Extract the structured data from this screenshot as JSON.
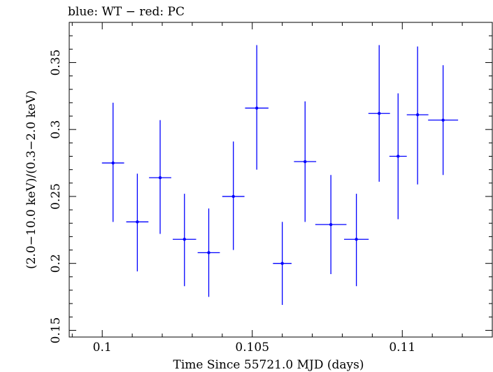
{
  "chart_data": {
    "type": "scatter",
    "title": "blue: WT − red: PC",
    "xlabel": "Time Since 55721.0 MJD (days)",
    "ylabel": "(2.0−10.0 keV)/(0.3−2.0 keV)",
    "xlim": [
      0.0989,
      0.113
    ],
    "ylim": [
      0.145,
      0.38
    ],
    "x_ticks": [
      {
        "value": 0.1,
        "label": "0.1"
      },
      {
        "value": 0.105,
        "label": "0.105"
      },
      {
        "value": 0.11,
        "label": "0.11"
      }
    ],
    "y_ticks": [
      {
        "value": 0.15,
        "label": "0.15"
      },
      {
        "value": 0.2,
        "label": "0.2"
      },
      {
        "value": 0.25,
        "label": "0.25"
      },
      {
        "value": 0.3,
        "label": "0.3"
      },
      {
        "value": 0.35,
        "label": "0.35"
      }
    ],
    "grid": false,
    "series": [
      {
        "color": "#0000ff",
        "points": [
          {
            "x": 0.10036,
            "xerr": 0.00037,
            "y": 0.275,
            "ylo": 0.231,
            "yhi": 0.32
          },
          {
            "x": 0.10117,
            "xerr": 0.00037,
            "y": 0.231,
            "ylo": 0.194,
            "yhi": 0.267
          },
          {
            "x": 0.10193,
            "xerr": 0.00037,
            "y": 0.264,
            "ylo": 0.222,
            "yhi": 0.307
          },
          {
            "x": 0.10274,
            "xerr": 0.00039,
            "y": 0.218,
            "ylo": 0.183,
            "yhi": 0.252
          },
          {
            "x": 0.10355,
            "xerr": 0.00037,
            "y": 0.208,
            "ylo": 0.175,
            "yhi": 0.241
          },
          {
            "x": 0.10437,
            "xerr": 0.00037,
            "y": 0.25,
            "ylo": 0.21,
            "yhi": 0.291
          },
          {
            "x": 0.10515,
            "xerr": 0.00039,
            "y": 0.316,
            "ylo": 0.27,
            "yhi": 0.363
          },
          {
            "x": 0.106,
            "xerr": 0.00031,
            "y": 0.2,
            "ylo": 0.169,
            "yhi": 0.231
          },
          {
            "x": 0.10676,
            "xerr": 0.00037,
            "y": 0.276,
            "ylo": 0.231,
            "yhi": 0.321
          },
          {
            "x": 0.10762,
            "xerr": 0.00052,
            "y": 0.229,
            "ylo": 0.192,
            "yhi": 0.266
          },
          {
            "x": 0.10847,
            "xerr": 0.00041,
            "y": 0.218,
            "ylo": 0.183,
            "yhi": 0.252
          },
          {
            "x": 0.10923,
            "xerr": 0.00036,
            "y": 0.312,
            "ylo": 0.261,
            "yhi": 0.363
          },
          {
            "x": 0.10986,
            "xerr": 0.00029,
            "y": 0.28,
            "ylo": 0.233,
            "yhi": 0.327
          },
          {
            "x": 0.11051,
            "xerr": 0.00036,
            "y": 0.311,
            "ylo": 0.259,
            "yhi": 0.362
          },
          {
            "x": 0.11136,
            "xerr": 0.0005,
            "y": 0.307,
            "ylo": 0.266,
            "yhi": 0.348
          }
        ]
      }
    ]
  }
}
